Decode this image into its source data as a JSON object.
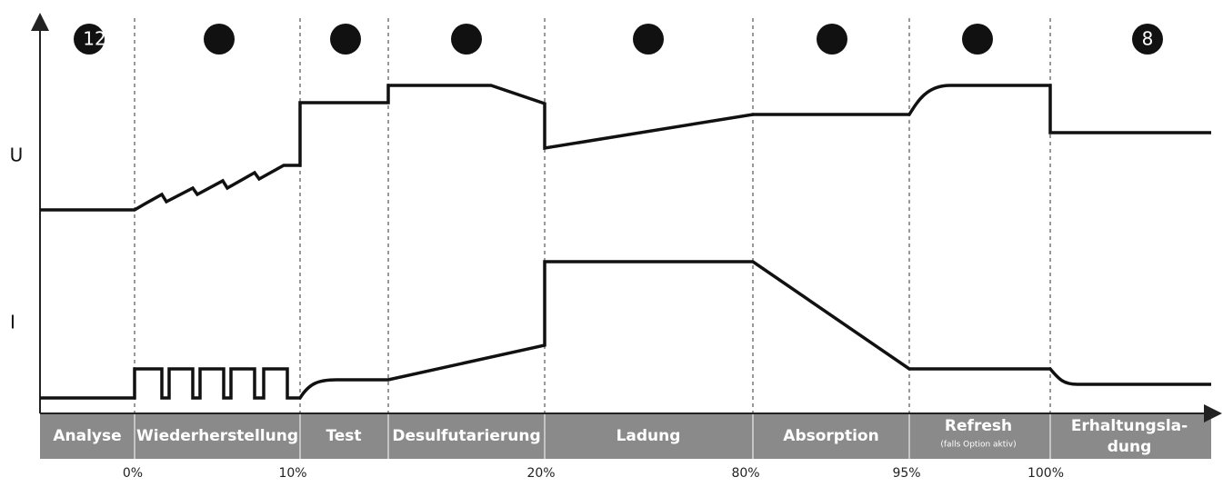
{
  "axes": {
    "voltage": "U",
    "current": "I"
  },
  "markers": [
    "12",
    "8"
  ],
  "phases": [
    {
      "lines": [
        "Analyse"
      ]
    },
    {
      "lines": [
        "Wiederherstellung"
      ]
    },
    {
      "lines": [
        "Test"
      ]
    },
    {
      "lines": [
        "Desulfutarierung"
      ]
    },
    {
      "lines": [
        "Ladung"
      ]
    },
    {
      "lines": [
        "Absorption"
      ]
    },
    {
      "lines": [
        "Refresh"
      ],
      "note": "(falls Option aktiv)"
    },
    {
      "lines": [
        "Erhaltungsla-",
        "dung"
      ]
    }
  ],
  "percentages": [
    "0%",
    "10%",
    "20%",
    "80%",
    "95%",
    "100%"
  ]
}
